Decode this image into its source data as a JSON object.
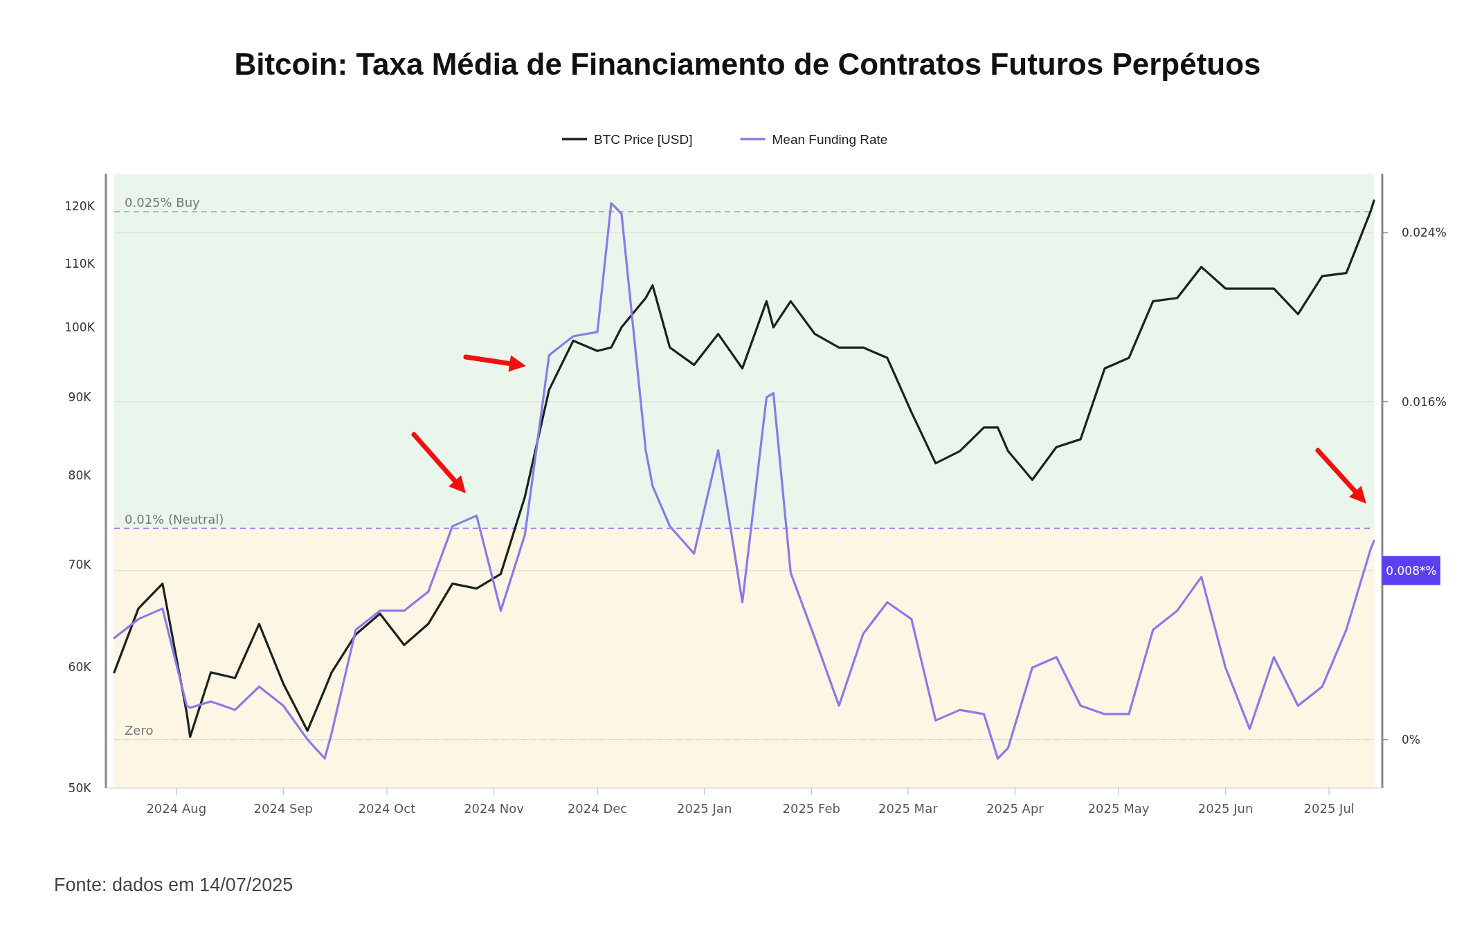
{
  "chart_data": {
    "type": "line",
    "title": "Bitcoin: Taxa Média de Financiamento de Contratos Futuros Perpétuos",
    "x": [
      "2024-07-14",
      "2024-07-21",
      "2024-07-28",
      "2024-08-04",
      "2024-08-05",
      "2024-08-11",
      "2024-08-18",
      "2024-08-25",
      "2024-09-01",
      "2024-09-08",
      "2024-09-13",
      "2024-09-15",
      "2024-09-22",
      "2024-09-29",
      "2024-10-06",
      "2024-10-13",
      "2024-10-20",
      "2024-10-27",
      "2024-11-03",
      "2024-11-10",
      "2024-11-17",
      "2024-11-24",
      "2024-12-01",
      "2024-12-05",
      "2024-12-08",
      "2024-12-15",
      "2024-12-17",
      "2024-12-22",
      "2024-12-29",
      "2025-01-05",
      "2025-01-12",
      "2025-01-19",
      "2025-01-21",
      "2025-01-26",
      "2025-02-02",
      "2025-02-09",
      "2025-02-16",
      "2025-02-23",
      "2025-03-02",
      "2025-03-09",
      "2025-03-16",
      "2025-03-23",
      "2025-03-27",
      "2025-03-30",
      "2025-04-06",
      "2025-04-13",
      "2025-04-20",
      "2025-04-27",
      "2025-05-04",
      "2025-05-11",
      "2025-05-18",
      "2025-05-25",
      "2025-06-01",
      "2025-06-08",
      "2025-06-15",
      "2025-06-22",
      "2025-06-29",
      "2025-07-06",
      "2025-07-13",
      "2025-07-14"
    ],
    "series": [
      {
        "name": "BTC Price [USD]",
        "color": "#1c211c",
        "values": [
          59500,
          65500,
          68000,
          56000,
          54000,
          59500,
          59000,
          64000,
          58500,
          54500,
          58000,
          59500,
          63000,
          65000,
          62000,
          64000,
          68000,
          67500,
          69000,
          77500,
          91000,
          98000,
          96500,
          97000,
          100000,
          104500,
          106500,
          97000,
          94500,
          99000,
          94000,
          104000,
          100000,
          104000,
          99000,
          97000,
          97000,
          95500,
          88000,
          81500,
          83000,
          86000,
          86000,
          83000,
          79500,
          83500,
          84500,
          94000,
          95500,
          104000,
          104500,
          109500,
          106000,
          106000,
          106000,
          102000,
          108000,
          108500,
          119000,
          121000
        ]
      },
      {
        "name": "Mean Funding Rate",
        "color": "#8b7ae6",
        "axis": "y2",
        "values": [
          0.0048,
          0.0057,
          0.0062,
          0.0016,
          0.0015,
          0.0018,
          0.0014,
          0.0025,
          0.0016,
          0.0,
          -0.0009,
          0.0003,
          0.0052,
          0.0061,
          0.0061,
          0.007,
          0.0101,
          0.0106,
          0.0061,
          0.0097,
          0.0182,
          0.0191,
          0.0193,
          0.0254,
          0.0249,
          0.0137,
          0.012,
          0.0101,
          0.0088,
          0.0137,
          0.0065,
          0.0162,
          0.0164,
          0.0079,
          0.0048,
          0.0016,
          0.005,
          0.0065,
          0.0057,
          0.0009,
          0.0014,
          0.0012,
          -0.0009,
          -0.0004,
          0.0034,
          0.0039,
          0.0016,
          0.0012,
          0.0012,
          0.0052,
          0.0061,
          0.0077,
          0.0034,
          0.0005,
          0.0039,
          0.0016,
          0.0025,
          0.0052,
          0.009,
          0.0094
        ]
      }
    ],
    "xlim": [
      "2024-07-14",
      "2025-07-14"
    ],
    "xticks": [
      {
        "value": "2024-08-01",
        "label": "2024 Aug"
      },
      {
        "value": "2024-09-01",
        "label": "2024 Sep"
      },
      {
        "value": "2024-10-01",
        "label": "2024 Oct"
      },
      {
        "value": "2024-11-01",
        "label": "2024 Nov"
      },
      {
        "value": "2024-12-01",
        "label": "2024 Dec"
      },
      {
        "value": "2025-01-01",
        "label": "2025 Jan"
      },
      {
        "value": "2025-02-01",
        "label": "2025 Feb"
      },
      {
        "value": "2025-03-01",
        "label": "2025 Mar"
      },
      {
        "value": "2025-04-01",
        "label": "2025 Apr"
      },
      {
        "value": "2025-05-01",
        "label": "2025 May"
      },
      {
        "value": "2025-06-01",
        "label": "2025 Jun"
      },
      {
        "value": "2025-07-01",
        "label": "2025 Jul"
      }
    ],
    "log": "y",
    "ylim": [
      50000,
      126000
    ],
    "yticks": [
      {
        "value": 50000,
        "label": "50K"
      },
      {
        "value": 60000,
        "label": "60K"
      },
      {
        "value": 70000,
        "label": "70K"
      },
      {
        "value": 80000,
        "label": "80K"
      },
      {
        "value": 90000,
        "label": "90K"
      },
      {
        "value": 100000,
        "label": "100K"
      },
      {
        "value": 110000,
        "label": "110K"
      },
      {
        "value": 120000,
        "label": "120K"
      }
    ],
    "y2lim": [
      -0.0023,
      0.0268
    ],
    "y2ticks": [
      {
        "value": 0,
        "label": "0%"
      },
      {
        "value": 0.008,
        "label": null
      },
      {
        "value": 0.016,
        "label": "0.016%"
      },
      {
        "value": 0.024,
        "label": "0.024%"
      }
    ],
    "ref_lines": [
      {
        "axis": "y2",
        "value": 0.025,
        "label": "0.025% Buy",
        "color": "#9aa39c",
        "line_style": "dashed"
      },
      {
        "axis": "y2",
        "value": 0.01,
        "label": "0.01% (Neutral)",
        "color": "#8b7ae6",
        "line_style": "dashed"
      },
      {
        "axis": "y2",
        "value": 0,
        "label": "Zero",
        "color": "#8c8a84",
        "line_style": "dashed"
      }
    ],
    "bands": [
      {
        "axis": "y2",
        "from": 0.01,
        "to": 0.0268,
        "color": "#eaf5ec"
      },
      {
        "axis": "y2",
        "from": -0.0023,
        "to": 0.01,
        "color": "#fdf6e4"
      }
    ],
    "annotations": [
      "0.008*%",
      "Fonte: dados em 14/07/2025"
    ],
    "legend": "top",
    "grid": true,
    "line_style": "solid",
    "marker": "none"
  }
}
